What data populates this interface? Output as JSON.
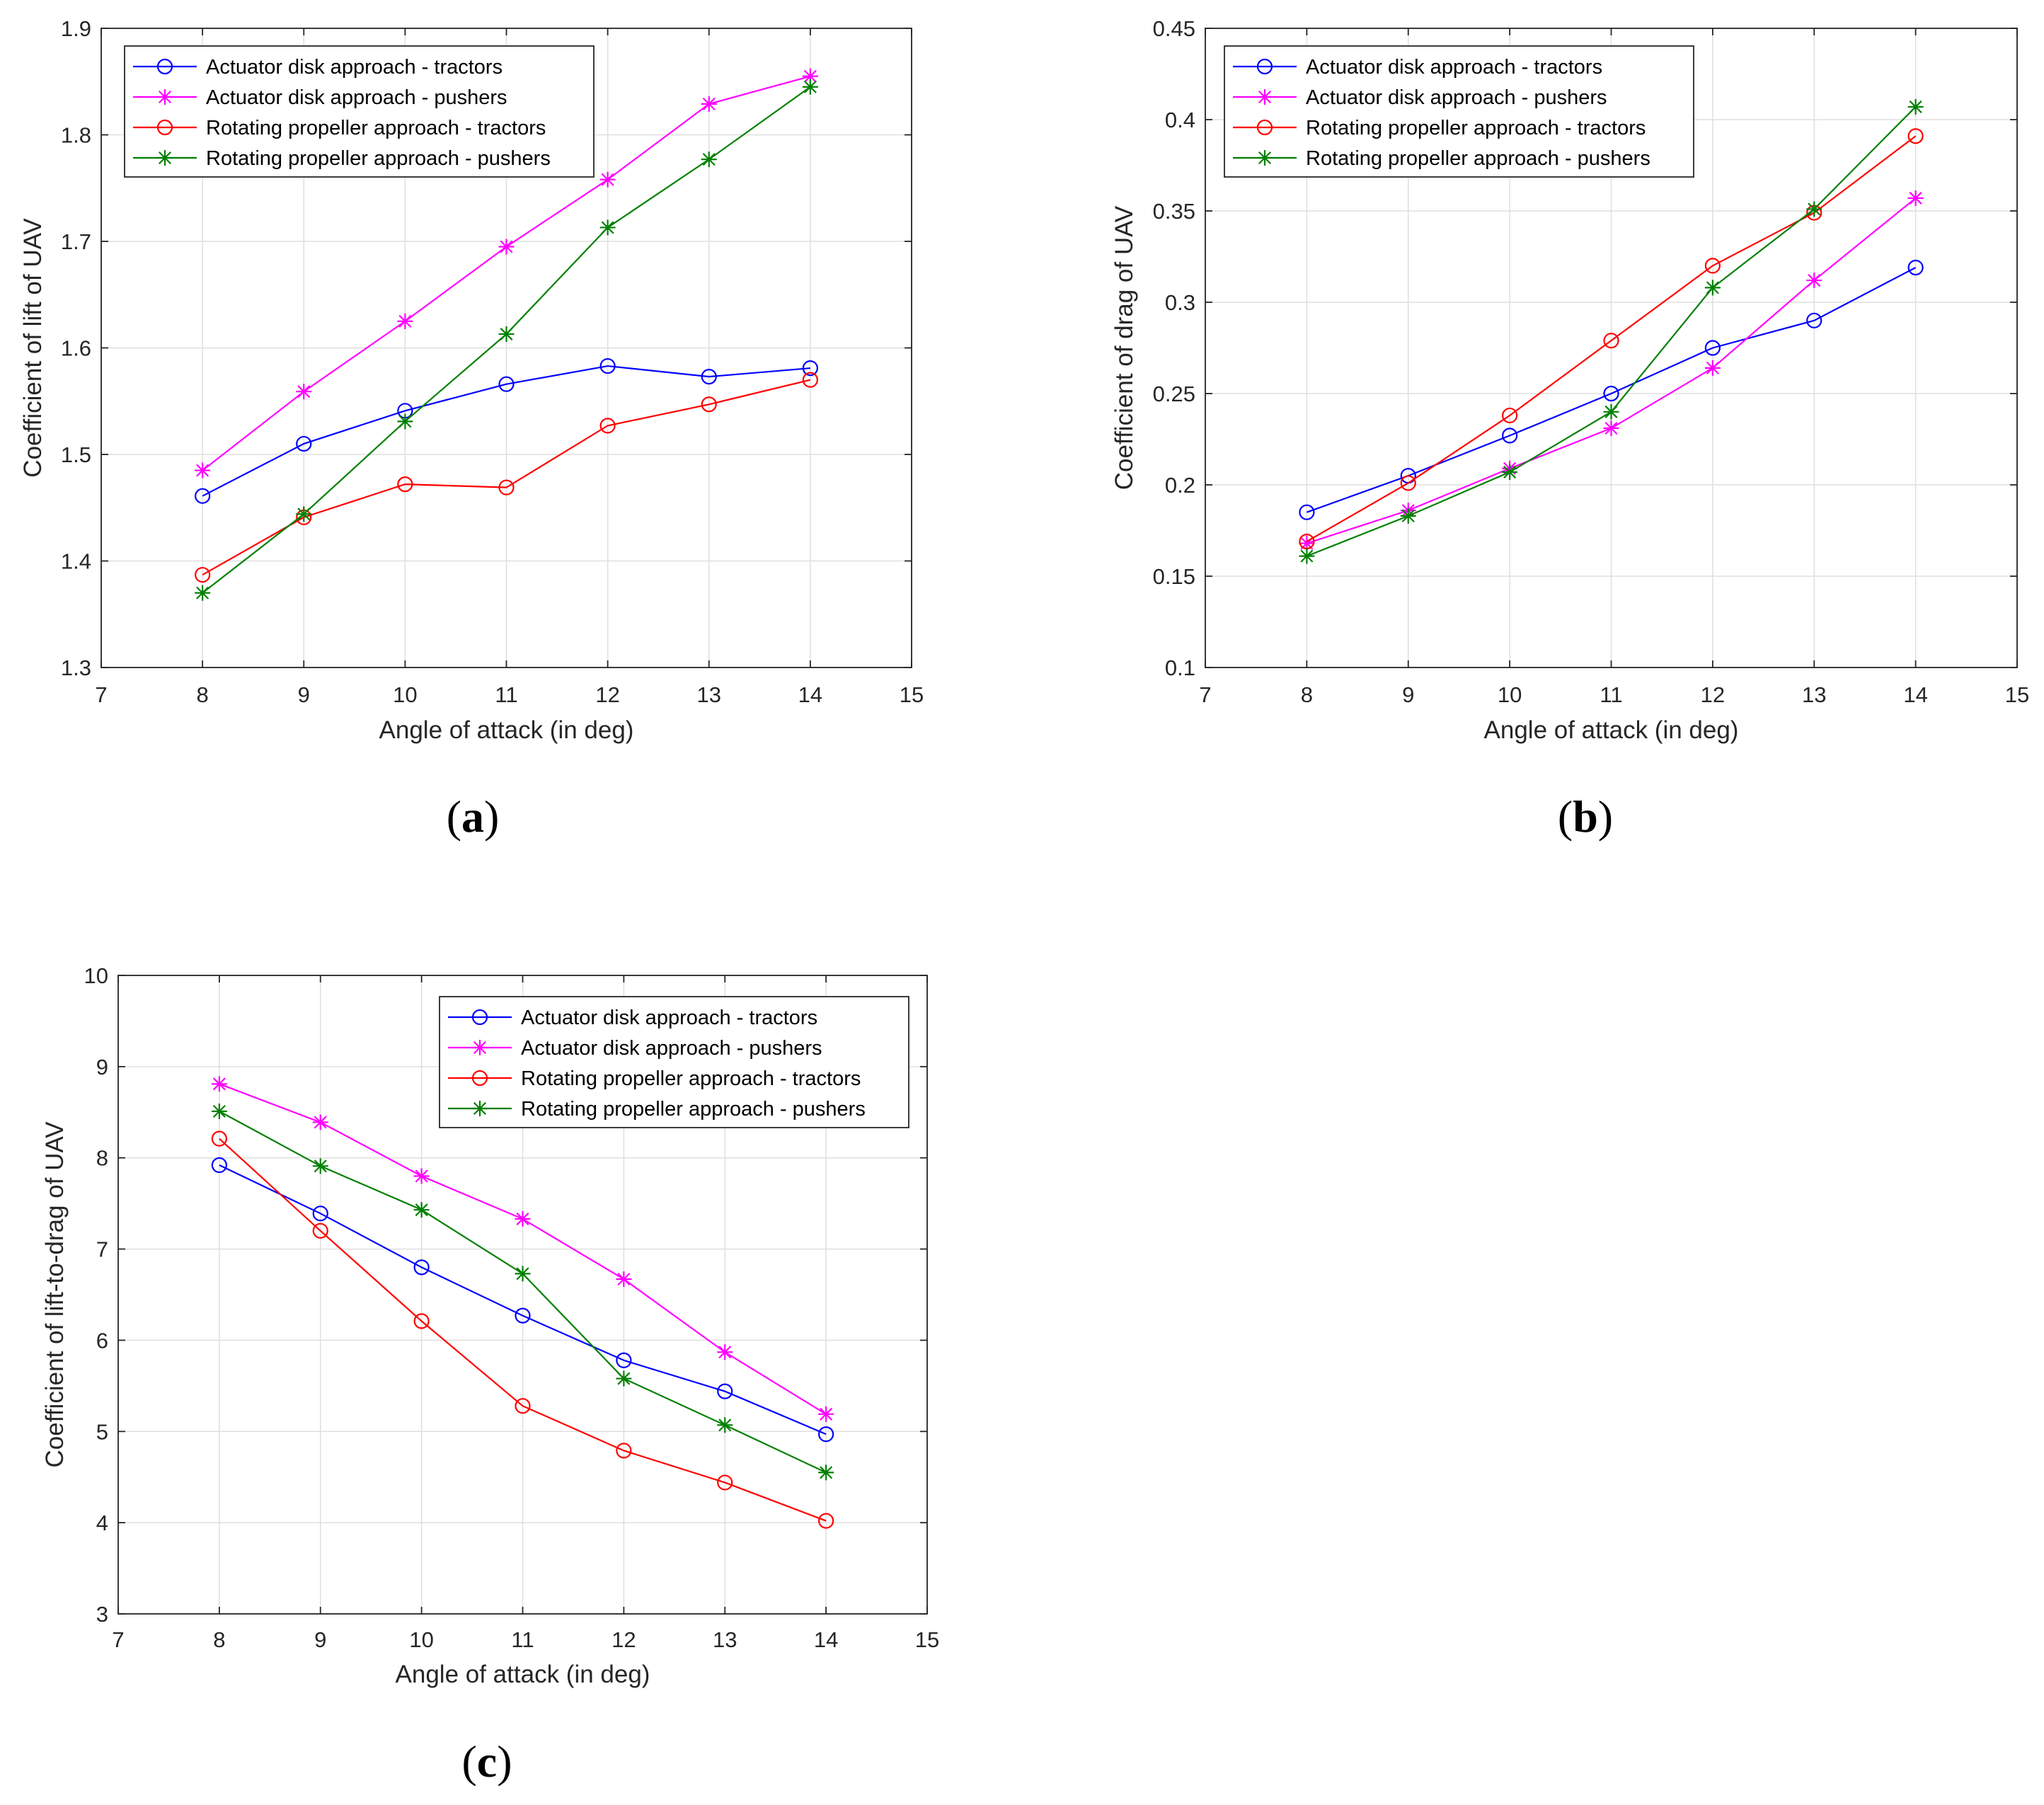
{
  "colors": {
    "actuator_tractors": "#0000ff",
    "actuator_pushers": "#ff00ff",
    "rotating_tractors": "#ff0000",
    "rotating_pushers": "#008000",
    "grid": "#dfdfdf",
    "axis": "#262626"
  },
  "chart_data": [
    {
      "type": "line",
      "panel": "(a)",
      "panel_open": "(",
      "panel_letter": "a",
      "panel_close": ")",
      "title": "",
      "xlabel": "Angle of attack (in deg)",
      "ylabel": "Coefficient of lift of UAV",
      "xlim": [
        7,
        15
      ],
      "ylim": [
        1.3,
        1.9
      ],
      "xticks": [
        7,
        8,
        9,
        10,
        11,
        12,
        13,
        14,
        15
      ],
      "xtick_labels": [
        "7",
        "8",
        "9",
        "10",
        "11",
        "12",
        "13",
        "14",
        "15"
      ],
      "yticks": [
        1.3,
        1.4,
        1.5,
        1.6,
        1.7,
        1.8,
        1.9
      ],
      "ytick_labels": [
        "1.3",
        "1.4",
        "1.5",
        "1.6",
        "1.7",
        "1.8",
        "1.9"
      ],
      "grid": true,
      "legend_position": "top-left",
      "x": [
        8,
        9,
        10,
        11,
        12,
        13,
        14
      ],
      "series": [
        {
          "name": "Actuator disk approach - tractors",
          "marker": "circle",
          "color_key": "actuator_tractors",
          "values": [
            1.461,
            1.51,
            1.541,
            1.566,
            1.583,
            1.573,
            1.581
          ]
        },
        {
          "name": "Actuator disk approach - pushers",
          "marker": "asterisk",
          "color_key": "actuator_pushers",
          "values": [
            1.485,
            1.559,
            1.625,
            1.695,
            1.758,
            1.829,
            1.855
          ]
        },
        {
          "name": "Rotating propeller approach - tractors",
          "marker": "circle",
          "color_key": "rotating_tractors",
          "values": [
            1.387,
            1.441,
            1.472,
            1.469,
            1.527,
            1.547,
            1.57
          ]
        },
        {
          "name": "Rotating propeller approach - pushers",
          "marker": "asterisk",
          "color_key": "rotating_pushers",
          "values": [
            1.37,
            1.444,
            1.531,
            1.613,
            1.713,
            1.777,
            1.845
          ]
        }
      ]
    },
    {
      "type": "line",
      "panel": "(b)",
      "panel_open": "(",
      "panel_letter": "b",
      "panel_close": ")",
      "title": "",
      "xlabel": "Angle of attack (in deg)",
      "ylabel": "Coefficient of drag of UAV",
      "xlim": [
        7,
        15
      ],
      "ylim": [
        0.1,
        0.45
      ],
      "xticks": [
        7,
        8,
        9,
        10,
        11,
        12,
        13,
        14,
        15
      ],
      "xtick_labels": [
        "7",
        "8",
        "9",
        "10",
        "11",
        "12",
        "13",
        "14",
        "15"
      ],
      "yticks": [
        0.1,
        0.15,
        0.2,
        0.25,
        0.3,
        0.35,
        0.4,
        0.45
      ],
      "ytick_labels": [
        "0.1",
        "0.15",
        "0.2",
        "0.25",
        "0.3",
        "0.35",
        "0.4",
        "0.45"
      ],
      "grid": true,
      "legend_position": "top-left",
      "x": [
        8,
        9,
        10,
        11,
        12,
        13,
        14
      ],
      "series": [
        {
          "name": "Actuator disk approach - tractors",
          "marker": "circle",
          "color_key": "actuator_tractors",
          "values": [
            0.185,
            0.205,
            0.227,
            0.25,
            0.275,
            0.29,
            0.319
          ]
        },
        {
          "name": "Actuator disk approach - pushers",
          "marker": "asterisk",
          "color_key": "actuator_pushers",
          "values": [
            0.168,
            0.186,
            0.209,
            0.231,
            0.264,
            0.312,
            0.357
          ]
        },
        {
          "name": "Rotating propeller approach - tractors",
          "marker": "circle",
          "color_key": "rotating_tractors",
          "values": [
            0.169,
            0.201,
            0.238,
            0.279,
            0.32,
            0.349,
            0.391
          ]
        },
        {
          "name": "Rotating propeller approach - pushers",
          "marker": "asterisk",
          "color_key": "rotating_pushers",
          "values": [
            0.161,
            0.183,
            0.207,
            0.24,
            0.308,
            0.351,
            0.407
          ]
        }
      ]
    },
    {
      "type": "line",
      "panel": "(c)",
      "panel_open": "(",
      "panel_letter": "c",
      "panel_close": ")",
      "title": "",
      "xlabel": "Angle of attack (in deg)",
      "ylabel": "Coefficient of lift-to-drag of UAV",
      "xlim": [
        7,
        15
      ],
      "ylim": [
        3,
        10
      ],
      "xticks": [
        7,
        8,
        9,
        10,
        11,
        12,
        13,
        14,
        15
      ],
      "xtick_labels": [
        "7",
        "8",
        "9",
        "10",
        "11",
        "12",
        "13",
        "14",
        "15"
      ],
      "yticks": [
        3,
        4,
        5,
        6,
        7,
        8,
        9,
        10
      ],
      "ytick_labels": [
        "3",
        "4",
        "5",
        "6",
        "7",
        "8",
        "9",
        "10"
      ],
      "grid": true,
      "legend_position": "top-right",
      "x": [
        8,
        9,
        10,
        11,
        12,
        13,
        14
      ],
      "series": [
        {
          "name": "Actuator disk approach - tractors",
          "marker": "circle",
          "color_key": "actuator_tractors",
          "values": [
            7.92,
            7.39,
            6.8,
            6.27,
            5.78,
            5.44,
            4.97
          ]
        },
        {
          "name": "Actuator disk approach - pushers",
          "marker": "asterisk",
          "color_key": "actuator_pushers",
          "values": [
            8.81,
            8.39,
            7.8,
            7.33,
            6.67,
            5.87,
            5.19
          ]
        },
        {
          "name": "Rotating propeller approach - tractors",
          "marker": "circle",
          "color_key": "rotating_tractors",
          "values": [
            8.21,
            7.2,
            6.21,
            5.28,
            4.79,
            4.44,
            4.02
          ]
        },
        {
          "name": "Rotating propeller approach - pushers",
          "marker": "asterisk",
          "color_key": "rotating_pushers",
          "values": [
            8.51,
            7.91,
            7.43,
            6.73,
            5.58,
            5.07,
            4.55
          ]
        }
      ]
    }
  ]
}
